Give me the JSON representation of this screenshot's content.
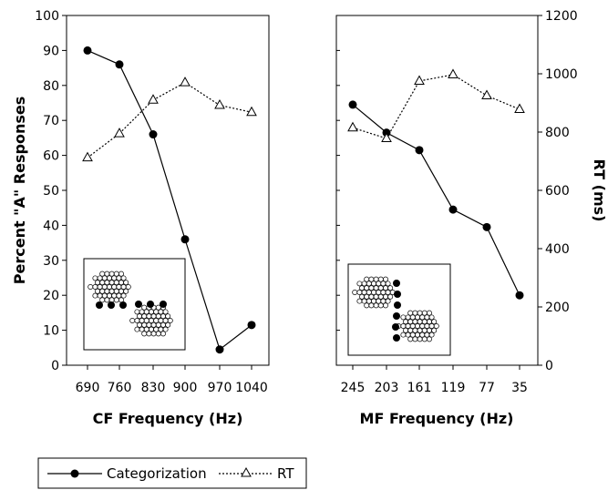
{
  "chart_data": [
    {
      "type": "line",
      "panel": "left",
      "xlabel": "CF Frequency (Hz)",
      "ylabel": "Percent \"A\" Responses",
      "categories": [
        "690",
        "760",
        "830",
        "900",
        "970",
        "1040"
      ],
      "ylim": [
        0,
        100
      ],
      "yticks": [
        "0",
        "10",
        "20",
        "30",
        "40",
        "50",
        "60",
        "70",
        "80",
        "90",
        "100"
      ],
      "y2lim": [
        0,
        1200
      ],
      "series": [
        {
          "name": "Categorization",
          "axis": "left",
          "marker": "filled-circle",
          "line": "solid",
          "values": [
            90,
            86,
            66,
            36,
            4.5,
            11.5
          ]
        },
        {
          "name": "RT",
          "axis": "right",
          "marker": "open-triangle",
          "line": "dotted",
          "values": [
            712,
            795,
            910,
            970,
            892,
            868
          ]
        }
      ],
      "inset": {
        "icon": "two-clusters-diagonal-icon",
        "highlight": "horizontal-row"
      }
    },
    {
      "type": "line",
      "panel": "right",
      "xlabel": "MF Frequency (Hz)",
      "ylabel": "RT (ms)",
      "categories": [
        "245",
        "203",
        "161",
        "119",
        "77",
        "35"
      ],
      "ylim": [
        0,
        100
      ],
      "y2lim": [
        0,
        1200
      ],
      "y2ticks": [
        "0",
        "200",
        "400",
        "600",
        "800",
        "1000",
        "1200"
      ],
      "series": [
        {
          "name": "Categorization",
          "axis": "left",
          "marker": "filled-circle",
          "line": "solid",
          "values": [
            74.5,
            66.5,
            61.5,
            44.5,
            39.5,
            20
          ]
        },
        {
          "name": "RT",
          "axis": "right",
          "marker": "open-triangle",
          "line": "dotted",
          "values": [
            815,
            778,
            975,
            997,
            925,
            878
          ]
        }
      ],
      "inset": {
        "icon": "two-clusters-diagonal-icon",
        "highlight": "vertical-column"
      }
    }
  ],
  "legend": {
    "items": [
      {
        "label": "Categorization",
        "marker": "filled-circle",
        "line": "solid"
      },
      {
        "label": "RT",
        "marker": "open-triangle",
        "line": "dotted"
      }
    ]
  },
  "colors": {
    "line": "#000000",
    "background": "#ffffff"
  }
}
